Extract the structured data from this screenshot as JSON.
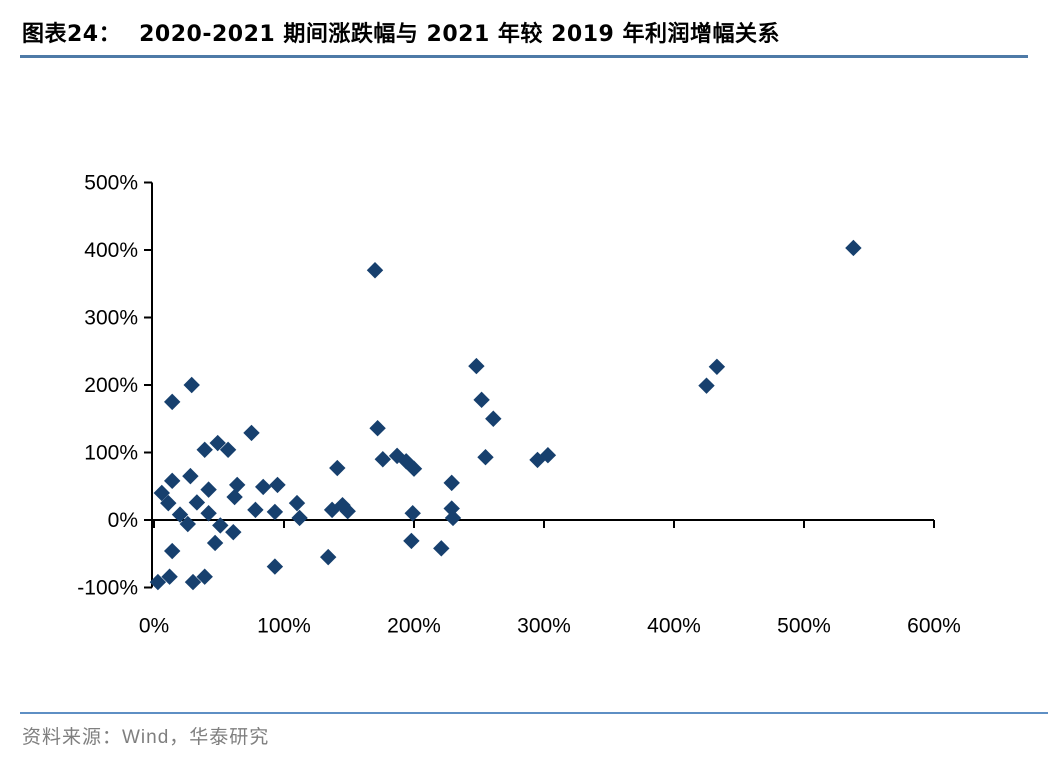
{
  "header": {
    "figure_label": "图表24：",
    "title": "2020-2021 期间涨跌幅与 2021 年较 2019 年利润增幅关系"
  },
  "footer": {
    "source_text": "资料来源：Wind，华泰研究"
  },
  "colors": {
    "marker": "#17406e",
    "axis": "#000000",
    "title_underline": "#4e7aa7",
    "footer_divider": "#5e8fc4",
    "source_text": "#7f7f7f"
  },
  "chart_data": {
    "type": "scatter",
    "title": "2020-2021 期间涨跌幅与 2021 年较 2019 年利润增幅关系",
    "xlabel": "",
    "ylabel": "",
    "xlim": [
      0,
      600
    ],
    "ylim": [
      -100,
      500
    ],
    "grid": false,
    "legend": "none",
    "marker_shape": "diamond",
    "x_tick_labels": [
      "0%",
      "100%",
      "200%",
      "300%",
      "400%",
      "500%",
      "600%"
    ],
    "x_tick_values": [
      0,
      100,
      200,
      300,
      400,
      500,
      600
    ],
    "y_tick_labels": [
      "500%",
      "400%",
      "300%",
      "200%",
      "100%",
      "0%",
      "-100%"
    ],
    "y_tick_values": [
      500,
      400,
      300,
      200,
      100,
      0,
      -100
    ],
    "points_unit": "percent",
    "points": [
      [
        170,
        370
      ],
      [
        538,
        403
      ],
      [
        433,
        227
      ],
      [
        425,
        199
      ],
      [
        248,
        228
      ],
      [
        252,
        178
      ],
      [
        261,
        150
      ],
      [
        29,
        200
      ],
      [
        14,
        175
      ],
      [
        75,
        129
      ],
      [
        39,
        104
      ],
      [
        49,
        114
      ],
      [
        57,
        104
      ],
      [
        172,
        136
      ],
      [
        176,
        90
      ],
      [
        187,
        95
      ],
      [
        194,
        87
      ],
      [
        200,
        76
      ],
      [
        255,
        93
      ],
      [
        295,
        89
      ],
      [
        303,
        96
      ],
      [
        28,
        65
      ],
      [
        14,
        58
      ],
      [
        6,
        40
      ],
      [
        11,
        25
      ],
      [
        42,
        45
      ],
      [
        33,
        26
      ],
      [
        64,
        52
      ],
      [
        62,
        34
      ],
      [
        84,
        49
      ],
      [
        95,
        52
      ],
      [
        78,
        15
      ],
      [
        93,
        12
      ],
      [
        141,
        77
      ],
      [
        110,
        25
      ],
      [
        112,
        3
      ],
      [
        20,
        8
      ],
      [
        26,
        -6
      ],
      [
        42,
        10
      ],
      [
        51,
        -8
      ],
      [
        61,
        -18
      ],
      [
        137,
        15
      ],
      [
        145,
        22
      ],
      [
        149,
        13
      ],
      [
        199,
        10
      ],
      [
        229,
        55
      ],
      [
        229,
        17
      ],
      [
        230,
        3
      ],
      [
        14,
        -46
      ],
      [
        47,
        -34
      ],
      [
        93,
        -69
      ],
      [
        134,
        -55
      ],
      [
        198,
        -31
      ],
      [
        221,
        -42
      ],
      [
        3,
        -92
      ],
      [
        12,
        -84
      ],
      [
        30,
        -92
      ],
      [
        39,
        -84
      ]
    ]
  }
}
